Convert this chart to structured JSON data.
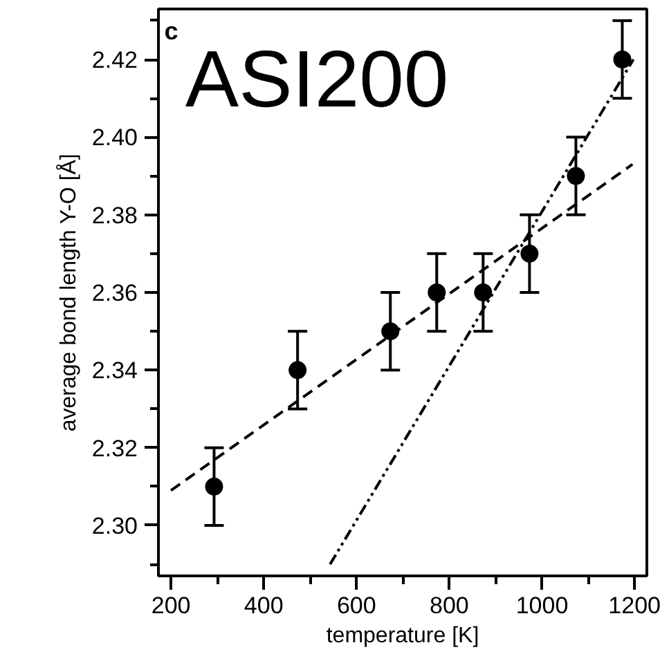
{
  "chart_data": {
    "type": "scatter",
    "xlabel": "temperature [K]",
    "ylabel": "average bond length Y-O [Å]",
    "annotations": [
      "c",
      "ASI200"
    ],
    "xlim": [
      173,
      1226
    ],
    "ylim": [
      2.287,
      2.433
    ],
    "xticks": [
      200,
      {
        "value": 300,
        "label": null
      },
      400,
      {
        "value": 500,
        "label": null
      },
      600,
      {
        "value": 700,
        "label": null
      },
      800,
      {
        "value": 900,
        "label": null
      },
      1000,
      {
        "value": 1100,
        "label": null
      },
      1200
    ],
    "yticks": [
      {
        "value": 2.29,
        "label": null
      },
      "2.30",
      {
        "value": 2.31,
        "label": null
      },
      {
        "value": 2.32,
        "label": "2.32"
      },
      {
        "value": 2.33,
        "label": null
      },
      {
        "value": 2.34,
        "label": "2.34"
      },
      {
        "value": 2.35,
        "label": null
      },
      {
        "value": 2.36,
        "label": "2.36"
      },
      {
        "value": 2.37,
        "label": null
      },
      {
        "value": 2.38,
        "label": "2.38"
      },
      {
        "value": 2.39,
        "label": null
      },
      {
        "value": 2.4,
        "label": "2.40"
      },
      {
        "value": 2.41,
        "label": null
      },
      {
        "value": 2.42,
        "label": "2.42"
      },
      {
        "value": 2.43,
        "label": null
      }
    ],
    "grid": false,
    "series": [
      {
        "marker": "circle",
        "color": "#000000",
        "x": [
          293,
          473,
          673,
          773,
          873,
          973,
          1073,
          1173
        ],
        "values": [
          2.31,
          2.34,
          2.35,
          2.36,
          2.36,
          2.37,
          2.39,
          2.42
        ],
        "errors": [
          0.01,
          0.01,
          0.01,
          0.01,
          0.01,
          0.01,
          0.01,
          0.01
        ]
      },
      {
        "type": "line",
        "color": "#000000",
        "line_style": "dashed",
        "x": [
          200,
          1195
        ],
        "values": [
          2.309,
          2.393
        ]
      },
      {
        "type": "line",
        "color": "#000000",
        "line_style": "dashdot",
        "x": [
          543,
          1197
        ],
        "values": [
          2.29,
          2.42
        ]
      }
    ]
  }
}
